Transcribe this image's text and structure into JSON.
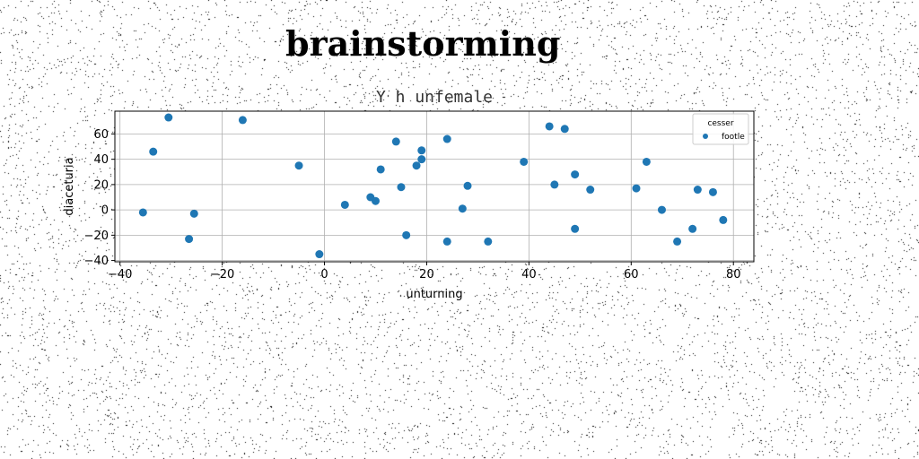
{
  "heading": "brainstorming",
  "chart_data": {
    "type": "scatter",
    "title": "Y h unfemale",
    "xlabel": "unturning",
    "ylabel": "diaceturia",
    "xlim": [
      -41,
      84
    ],
    "ylim": [
      -41,
      78
    ],
    "xticks": [
      -40,
      -20,
      0,
      20,
      40,
      60,
      80
    ],
    "yticks": [
      -40,
      -20,
      0,
      20,
      40,
      60
    ],
    "grid": true,
    "legend": {
      "title": "cesser",
      "placement": "top-right"
    },
    "series": [
      {
        "name": "footle",
        "color": "#1f77b4",
        "points": [
          {
            "x": -35.5,
            "y": -2
          },
          {
            "x": -33.5,
            "y": 46
          },
          {
            "x": -30.5,
            "y": 73
          },
          {
            "x": -26.5,
            "y": -23
          },
          {
            "x": -25.5,
            "y": -3
          },
          {
            "x": -16,
            "y": 71
          },
          {
            "x": -5,
            "y": 35
          },
          {
            "x": -1,
            "y": -35
          },
          {
            "x": 4,
            "y": 4
          },
          {
            "x": 9,
            "y": 10
          },
          {
            "x": 10,
            "y": 7
          },
          {
            "x": 11,
            "y": 32
          },
          {
            "x": 14,
            "y": 54
          },
          {
            "x": 15,
            "y": 18
          },
          {
            "x": 16,
            "y": -20
          },
          {
            "x": 18,
            "y": 35
          },
          {
            "x": 19,
            "y": 40
          },
          {
            "x": 19,
            "y": 47
          },
          {
            "x": 24,
            "y": 56
          },
          {
            "x": 24,
            "y": -25
          },
          {
            "x": 27,
            "y": 1
          },
          {
            "x": 28,
            "y": 19
          },
          {
            "x": 32,
            "y": -25
          },
          {
            "x": 39,
            "y": 38
          },
          {
            "x": 44,
            "y": 66
          },
          {
            "x": 45,
            "y": 20
          },
          {
            "x": 47,
            "y": 64
          },
          {
            "x": 49,
            "y": 28
          },
          {
            "x": 49,
            "y": -15
          },
          {
            "x": 52,
            "y": 16
          },
          {
            "x": 61,
            "y": 17
          },
          {
            "x": 63,
            "y": 38
          },
          {
            "x": 66,
            "y": 0
          },
          {
            "x": 69,
            "y": -25
          },
          {
            "x": 72,
            "y": -15
          },
          {
            "x": 73,
            "y": 16
          },
          {
            "x": 76,
            "y": 14
          },
          {
            "x": 78,
            "y": -8
          }
        ]
      }
    ]
  }
}
